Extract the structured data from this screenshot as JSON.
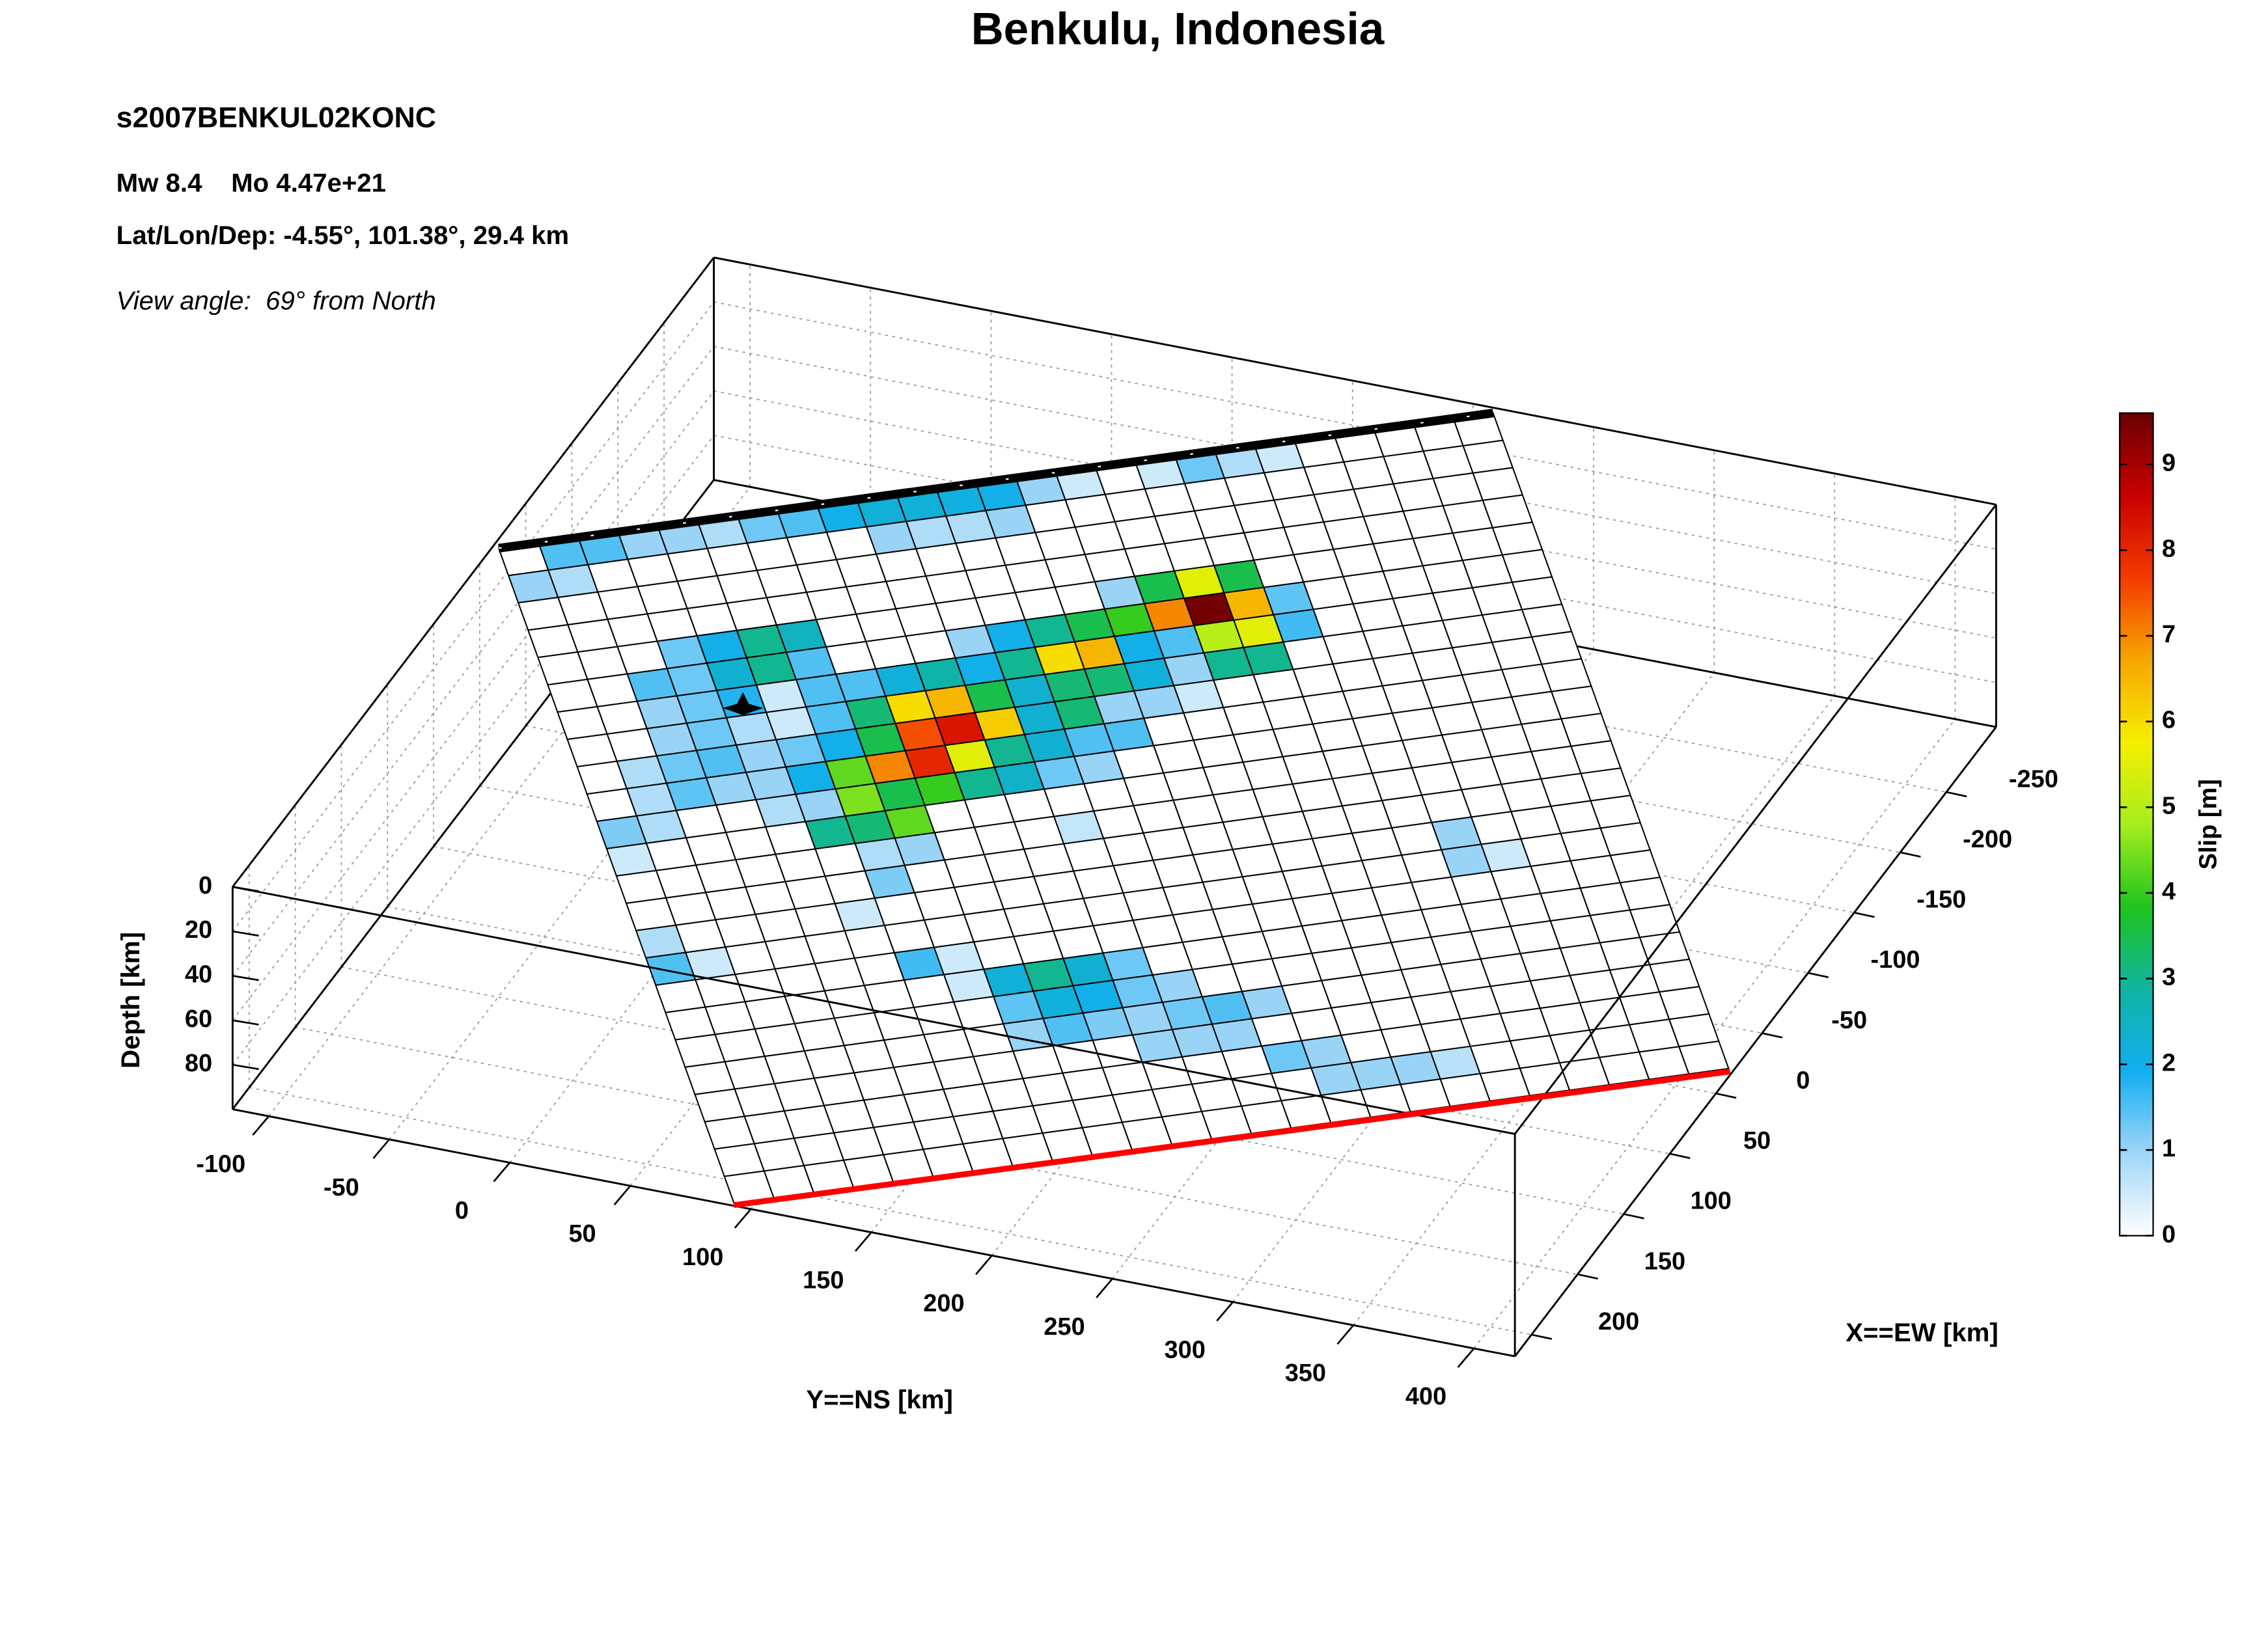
{
  "chart_data": {
    "type": "fault_slip_3d",
    "title": "Benkulu, Indonesia",
    "annotations": [
      "s2007BENKUL02KONC",
      "Mw 8.4    Mo 4.47e+21",
      "Lat/Lon/Dep: -4.55°, 101.38°, 29.4 km",
      "View angle:  69° from North"
    ],
    "ns_label": "Y==NS [km]",
    "nslim": [
      -115,
      417
    ],
    "nsticks": [
      -100,
      -50,
      0,
      50,
      100,
      150,
      200,
      250,
      300,
      350,
      400
    ],
    "ew_label": "X==EW [km]",
    "ewlim": [
      218,
      -304
    ],
    "ewticks": [
      200,
      150,
      100,
      50,
      0,
      -50,
      -100,
      -150,
      -200,
      -250
    ],
    "depth_label": "Depth [km]",
    "depthlim": [
      0,
      100
    ],
    "depthticks": [
      0,
      20,
      40,
      60,
      80
    ],
    "colorbar_label": "Slip [m]",
    "clim": [
      0,
      9.6
    ],
    "cticks": [
      0,
      1,
      2,
      3,
      4,
      5,
      6,
      7,
      8,
      9
    ],
    "colormap": [
      "#ffffff",
      "#9fd6f7",
      "#12aef0",
      "#10b4a0",
      "#1fc41f",
      "#a6ee1e",
      "#f6ee00",
      "#f6a600",
      "#f43a00",
      "#c80000",
      "#6a0000"
    ],
    "grid": true,
    "slip": [
      [
        0,
        1.5,
        1.5,
        1,
        1,
        0.8,
        1.3,
        1.5,
        2,
        2.2,
        2.2,
        2.1,
        2,
        1,
        0.5,
        0,
        0.5,
        1.3,
        0.8,
        0.5,
        0,
        0,
        0,
        0,
        0
      ],
      [
        1,
        0.8,
        0,
        0,
        0,
        0,
        0,
        0,
        0,
        1,
        0.8,
        0.8,
        1,
        0,
        0,
        0,
        0,
        0,
        0,
        0,
        0,
        0,
        0,
        0,
        0
      ],
      [
        0,
        0,
        0,
        0,
        0,
        0,
        0,
        0,
        0,
        0,
        0,
        0,
        0,
        0,
        0,
        0,
        0,
        0,
        0,
        0,
        0,
        0,
        0,
        0,
        0
      ],
      [
        0,
        0,
        0,
        0,
        0,
        0,
        0,
        0,
        0,
        0,
        0,
        0,
        0,
        0,
        0,
        0,
        0,
        0,
        0,
        0,
        0,
        0,
        0,
        0,
        0
      ],
      [
        0,
        0,
        0,
        1.3,
        2,
        3,
        2.5,
        0,
        0,
        0,
        0,
        0,
        0,
        0,
        1,
        3.5,
        5.5,
        3.5,
        0,
        0,
        0,
        0,
        0,
        0,
        0
      ],
      [
        0,
        0,
        1.5,
        1.3,
        2.3,
        3,
        1.5,
        0,
        0,
        0,
        1,
        2,
        3,
        3.5,
        4,
        7,
        9.5,
        6.5,
        1.4,
        0,
        0,
        0,
        0,
        0,
        0
      ],
      [
        0,
        0,
        1,
        1.3,
        1.8,
        0.5,
        1.5,
        1.5,
        2.2,
        2.8,
        2,
        3,
        6,
        6.5,
        2,
        1.5,
        5,
        5.5,
        1.6,
        0,
        0,
        0,
        0,
        0,
        0
      ],
      [
        0,
        0,
        1,
        1.3,
        0.8,
        0.5,
        1.5,
        3.2,
        6,
        6.5,
        3.5,
        2.3,
        3.2,
        3.2,
        2.2,
        1,
        3,
        3,
        0,
        0,
        0,
        0,
        0,
        0,
        0
      ],
      [
        0,
        0.8,
        1.3,
        1.5,
        1,
        1.3,
        2,
        3.5,
        7.5,
        8.3,
        6.2,
        2.3,
        3.2,
        1,
        1,
        0.5,
        0,
        0,
        0,
        0,
        0,
        0,
        0,
        0,
        0
      ],
      [
        0,
        0.8,
        1.4,
        1,
        1,
        2,
        4.3,
        7,
        8,
        5.5,
        3,
        2.3,
        1.5,
        1.5,
        0,
        0,
        0,
        0,
        0,
        0,
        0,
        0,
        0,
        0,
        0
      ],
      [
        1.2,
        0.8,
        0,
        0,
        0.8,
        1,
        4.5,
        3.5,
        4,
        3,
        2.4,
        1.3,
        1,
        0,
        0,
        0,
        0,
        0,
        0,
        0,
        0,
        0,
        0,
        0,
        0
      ],
      [
        0.5,
        0,
        0,
        0,
        0,
        3,
        3.2,
        4.3,
        0,
        0,
        0,
        0,
        0,
        0,
        0,
        0,
        0,
        0,
        0,
        0,
        0,
        0,
        0,
        0,
        0
      ],
      [
        0,
        0,
        0,
        0,
        0,
        0,
        0.8,
        1,
        0,
        0,
        0,
        0.6,
        0,
        0,
        0,
        0,
        0,
        0,
        0,
        0,
        0,
        0,
        0,
        0,
        0
      ],
      [
        0,
        0,
        0,
        0,
        0,
        0,
        1.2,
        0,
        0,
        0,
        0,
        0,
        0,
        0,
        0,
        0,
        0,
        0,
        0,
        0,
        0,
        0,
        0,
        0,
        0
      ],
      [
        0.8,
        0,
        0,
        0,
        0,
        0.5,
        0,
        0,
        0,
        0,
        0,
        0,
        0,
        0,
        0,
        0,
        0,
        0,
        0,
        0,
        1,
        0,
        0,
        0,
        0
      ],
      [
        1.5,
        0.5,
        0,
        0,
        0,
        0,
        0,
        0,
        0,
        0,
        0,
        0,
        0,
        0,
        0,
        0,
        0,
        0,
        0,
        0,
        1,
        0.5,
        0,
        0,
        0
      ],
      [
        0,
        0,
        0,
        0,
        0,
        0,
        1.6,
        0.5,
        0,
        0,
        0,
        0,
        0,
        0,
        0,
        0,
        0,
        0,
        0,
        0,
        0,
        0,
        0,
        0,
        0
      ],
      [
        0,
        0,
        0,
        0,
        0,
        0,
        0,
        0.5,
        2.2,
        3,
        2.3,
        1.3,
        0,
        0,
        0,
        0,
        0,
        0,
        0,
        0,
        0,
        0,
        0,
        0,
        0
      ],
      [
        0,
        0,
        0,
        0,
        0,
        0,
        0,
        0,
        1.4,
        2.2,
        2,
        1.3,
        1,
        0,
        0,
        0,
        0,
        0,
        0,
        0,
        0,
        0,
        0,
        0,
        0
      ],
      [
        0,
        0,
        0,
        0,
        0,
        0,
        0,
        0,
        1,
        1.5,
        1.2,
        1,
        1.3,
        1.5,
        1,
        0,
        0,
        0,
        0,
        0,
        0,
        0,
        0,
        0,
        0
      ],
      [
        0,
        0,
        0,
        0,
        0,
        0,
        0,
        0,
        0,
        0,
        0,
        1,
        1,
        1,
        0,
        0,
        0,
        0,
        0,
        0,
        0,
        0,
        0,
        0,
        0
      ],
      [
        0,
        0,
        0,
        0,
        0,
        0,
        0,
        0,
        0,
        0,
        0,
        0,
        0,
        0,
        1.3,
        1,
        0,
        0,
        0,
        0,
        0,
        0,
        0,
        0,
        0
      ],
      [
        0,
        0,
        0,
        0,
        0,
        0,
        0,
        0,
        0,
        0,
        0,
        0,
        0,
        0,
        0,
        1,
        1,
        1,
        0.7,
        0,
        0,
        0,
        0,
        0,
        0
      ],
      [
        0,
        0,
        0,
        0,
        0,
        0,
        0,
        0,
        0,
        0,
        0,
        0,
        0,
        0,
        0,
        0,
        0,
        0,
        0,
        0,
        0,
        0,
        0,
        0,
        0
      ]
    ]
  }
}
